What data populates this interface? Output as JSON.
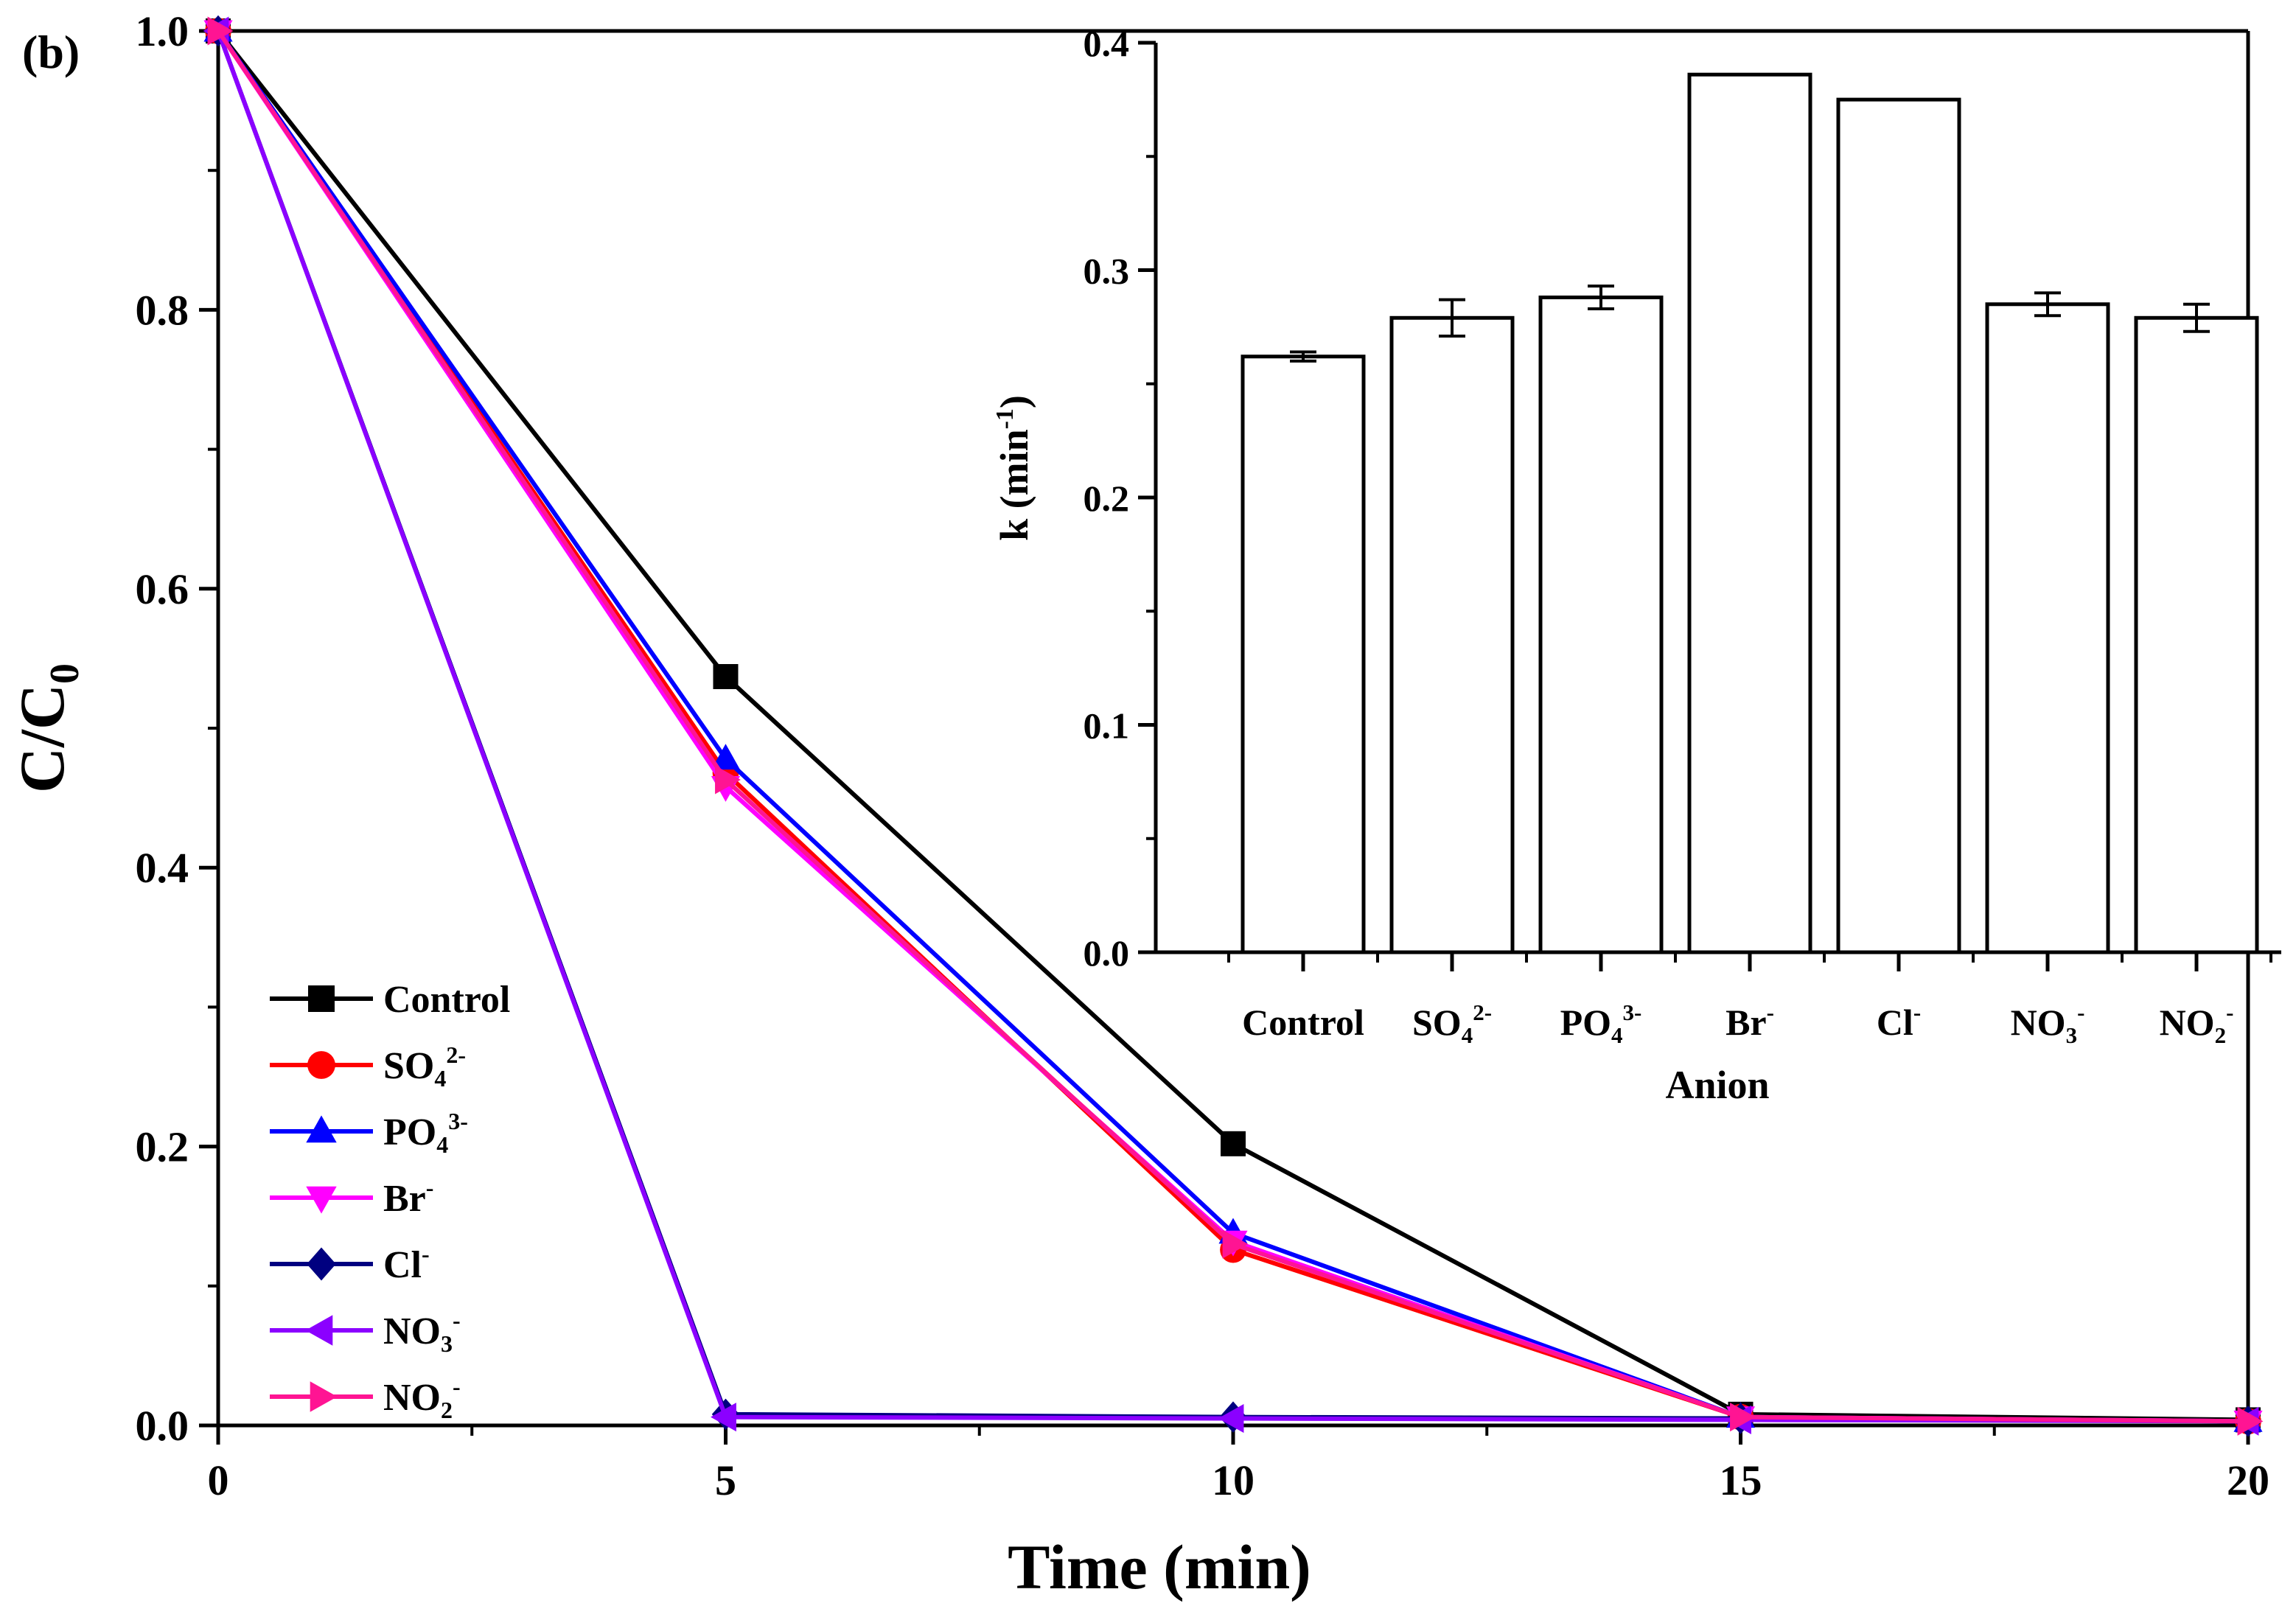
{
  "panel_label": "(b)",
  "chart_data": [
    {
      "id": "main",
      "type": "line",
      "title": "",
      "xlabel": "Time (min)",
      "ylabel": {
        "base": "C/C",
        "sub": "0"
      },
      "xlim": [
        0,
        20
      ],
      "ylim": [
        0,
        1.0
      ],
      "x_ticks": [
        "0",
        "5",
        "10",
        "15",
        "20"
      ],
      "y_ticks": [
        "0.0",
        "0.2",
        "0.4",
        "0.6",
        "0.8",
        "1.0"
      ],
      "x": [
        0,
        5,
        10,
        15,
        20
      ],
      "legend_position": "bottom-left",
      "series": [
        {
          "name": "Control",
          "sup": "",
          "sub": "",
          "marker": "square",
          "color": "#000000",
          "values": [
            1.0,
            0.537,
            0.202,
            0.008,
            0.004
          ]
        },
        {
          "name": "SO",
          "sub": "4",
          "sup": "2-",
          "marker": "circle",
          "color": "#ff0000",
          "values": [
            1.0,
            0.468,
            0.126,
            0.006,
            0.003
          ]
        },
        {
          "name": "PO",
          "sub": "4",
          "sup": "3-",
          "marker": "triangle-up",
          "color": "#0000ff",
          "values": [
            1.0,
            0.478,
            0.138,
            0.006,
            0.003
          ]
        },
        {
          "name": "Br",
          "sub": "",
          "sup": "-",
          "marker": "triangle-down",
          "color": "#ff00ff",
          "values": [
            1.0,
            0.458,
            0.132,
            0.006,
            0.003
          ]
        },
        {
          "name": "Cl",
          "sub": "",
          "sup": "-",
          "marker": "diamond",
          "color": "#000080",
          "values": [
            1.0,
            0.008,
            0.006,
            0.005,
            0.003
          ]
        },
        {
          "name": "NO",
          "sub": "3",
          "sup": "-",
          "marker": "triangle-left",
          "color": "#8b00ff",
          "values": [
            1.0,
            0.006,
            0.005,
            0.004,
            0.003
          ]
        },
        {
          "name": "NO",
          "sub": "2",
          "sup": "-",
          "marker": "triangle-right",
          "color": "#ff1493",
          "values": [
            1.0,
            0.463,
            0.13,
            0.006,
            0.003
          ]
        }
      ]
    },
    {
      "id": "inset",
      "type": "bar",
      "title": "",
      "xlabel": "Anion",
      "ylabel": {
        "base": "k (min",
        "sup": "-1",
        "tail": ")"
      },
      "ylim": [
        0,
        0.4
      ],
      "y_ticks": [
        "0.0",
        "0.1",
        "0.2",
        "0.3",
        "0.4"
      ],
      "categories": [
        {
          "base": "Control",
          "sub": "",
          "sup": ""
        },
        {
          "base": "SO",
          "sub": "4",
          "sup": "2-"
        },
        {
          "base": "PO",
          "sub": "4",
          "sup": "3-"
        },
        {
          "base": "Br",
          "sub": "",
          "sup": "-"
        },
        {
          "base": "Cl",
          "sub": "",
          "sup": "-"
        },
        {
          "base": "NO",
          "sub": "3",
          "sup": "-"
        },
        {
          "base": "NO",
          "sub": "2",
          "sup": "-"
        }
      ],
      "values": [
        0.262,
        0.279,
        0.288,
        0.386,
        0.375,
        0.285,
        0.279
      ],
      "errors": [
        0.002,
        0.008,
        0.005,
        0,
        0,
        0.005,
        0.006
      ]
    }
  ]
}
